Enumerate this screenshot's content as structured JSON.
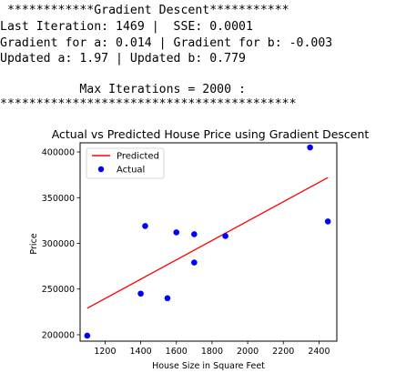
{
  "console": {
    "lines": [
      " ************Gradient Descent***********",
      "Last Iteration: 1469 |  SSE: 0.0001",
      "Gradient for a: 0.014 | Gradient for b: -0.003",
      "Updated a: 1.97 | Updated b: 0.779",
      "",
      "           Max Iterations = 2000 :",
      "*****************************************"
    ]
  },
  "chart_data": {
    "type": "scatter",
    "title": "Actual vs Predicted House Price using Gradient Descent",
    "xlabel": "House Size in Square Feet",
    "ylabel": "Price",
    "xlim": [
      1060,
      2500
    ],
    "ylim": [
      193000,
      410000
    ],
    "xticks": [
      1200,
      1400,
      1600,
      1800,
      2000,
      2200,
      2400
    ],
    "yticks": [
      200000,
      250000,
      300000,
      350000,
      400000
    ],
    "legend_position": "top-left",
    "series": [
      {
        "name": "Predicted",
        "kind": "line",
        "color": "#ff0000",
        "x": [
          1100,
          2450
        ],
        "y": [
          229000,
          372000
        ]
      },
      {
        "name": "Actual",
        "kind": "scatter",
        "color": "#0000ff",
        "x": [
          1100,
          1400,
          1425,
          1550,
          1600,
          1700,
          1700,
          1875,
          2350,
          2450
        ],
        "y": [
          199000,
          245000,
          319000,
          240000,
          312000,
          279000,
          310000,
          308000,
          405000,
          324000
        ]
      }
    ]
  }
}
